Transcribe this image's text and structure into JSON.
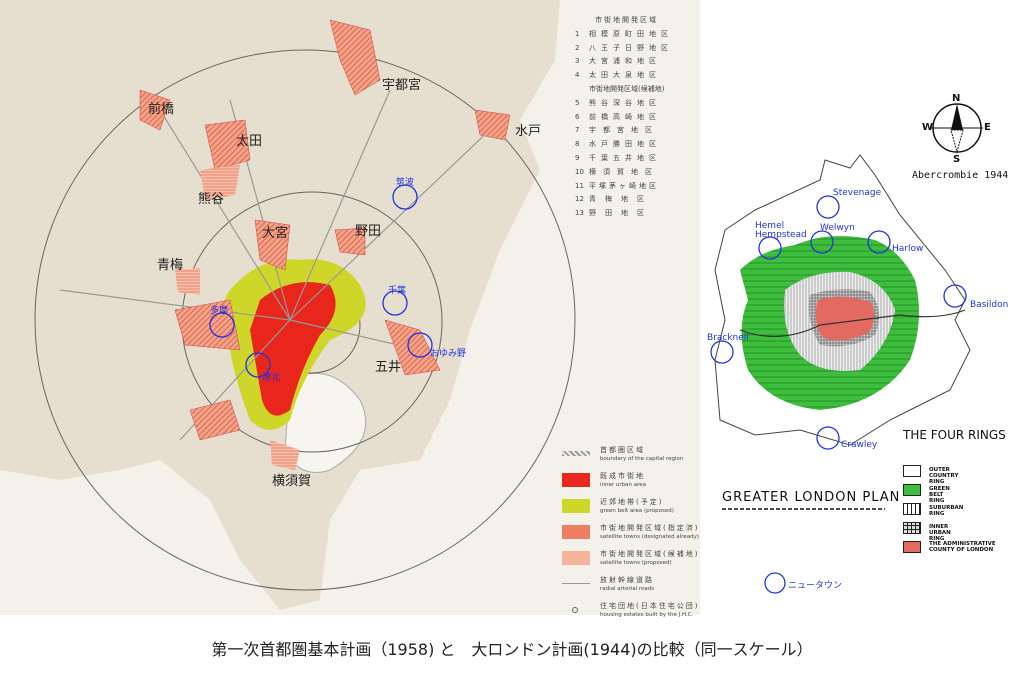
{
  "tokyo_map": {
    "place_labels": [
      "前橋",
      "太田",
      "熊谷",
      "宇都宮",
      "水戸",
      "大宮",
      "野田",
      "青梅",
      "五井",
      "横須賀"
    ],
    "newtown_labels": [
      "筑波",
      "多摩",
      "千葉",
      "おゆみ野",
      "港北"
    ],
    "district_list": {
      "header_designated": "市街地開発区域",
      "designated": [
        {
          "no": "1",
          "name": "相模原町田地区"
        },
        {
          "no": "2",
          "name": "八王子日野地区"
        },
        {
          "no": "3",
          "name": "大宮浦和地区"
        },
        {
          "no": "4",
          "name": "太田大泉地区"
        }
      ],
      "header_candidate": "市街地開発区域(候補地)",
      "candidate": [
        {
          "no": "5",
          "name": "熊谷深谷地区"
        },
        {
          "no": "6",
          "name": "前橋高崎地区"
        },
        {
          "no": "7",
          "name": "宇都宮地区"
        },
        {
          "no": "8",
          "name": "水戸勝田地区"
        },
        {
          "no": "9",
          "name": "千葉五井地区"
        },
        {
          "no": "10",
          "name": "横須賀地区"
        },
        {
          "no": "11",
          "name": "平塚茅ヶ崎地区"
        },
        {
          "no": "12",
          "name": "青梅地区"
        },
        {
          "no": "13",
          "name": "野田地区"
        }
      ]
    },
    "legend": [
      {
        "jp": "首都圏区域",
        "en": "boundary of the capital region",
        "color": "#888888"
      },
      {
        "jp": "既成市街地",
        "en": "inner urban area",
        "color": "#e8261b"
      },
      {
        "jp": "近郊地帯(予定)",
        "en": "green belt area (proposed)",
        "color": "#cfd62a"
      },
      {
        "jp": "市街地開発区域(指定済)",
        "en": "satellite towns (designated already)",
        "color": "#ee7e62"
      },
      {
        "jp": "市街地開発区域(候補地)",
        "en": "satellite towns (proposed)",
        "color": "#f4b49a"
      },
      {
        "jp": "放射幹線道路",
        "en": "radial arterial roads",
        "color": "#999999"
      },
      {
        "jp": "住宅団地(日本住宅公団)",
        "en": "housing estates built by the J.H.C.",
        "color": "#666666"
      }
    ]
  },
  "london_map": {
    "compass": {
      "n": "N",
      "s": "S",
      "e": "E",
      "w": "W"
    },
    "credit": "Abercrombie 1944",
    "title": "GREATER LONDON PLAN",
    "newtowns": [
      "Stevenage",
      "Welwyn",
      "Hemel Hempstead",
      "Harlow",
      "Basildon",
      "Bracknell",
      "Crawley"
    ],
    "rings_title": "THE FOUR RINGS",
    "rings": [
      {
        "label": "OUTER COUNTRY RING",
        "color": "#ffffff"
      },
      {
        "label": "GREEN BELT RING",
        "color": "#3dbf3d"
      },
      {
        "label": "SUBURBAN RING",
        "color": "#dddddd"
      },
      {
        "label": "INNER URBAN RING",
        "color": "#999999"
      },
      {
        "label": "THE ADMINISTRATIVE COUNTY OF LONDON",
        "color": "#e36a60"
      }
    ],
    "newtown_legend": "ニュータウン"
  },
  "caption": "第一次首都圏基本計画（1958) と　大ロンドン計画(1944)の比較（同一スケール）"
}
